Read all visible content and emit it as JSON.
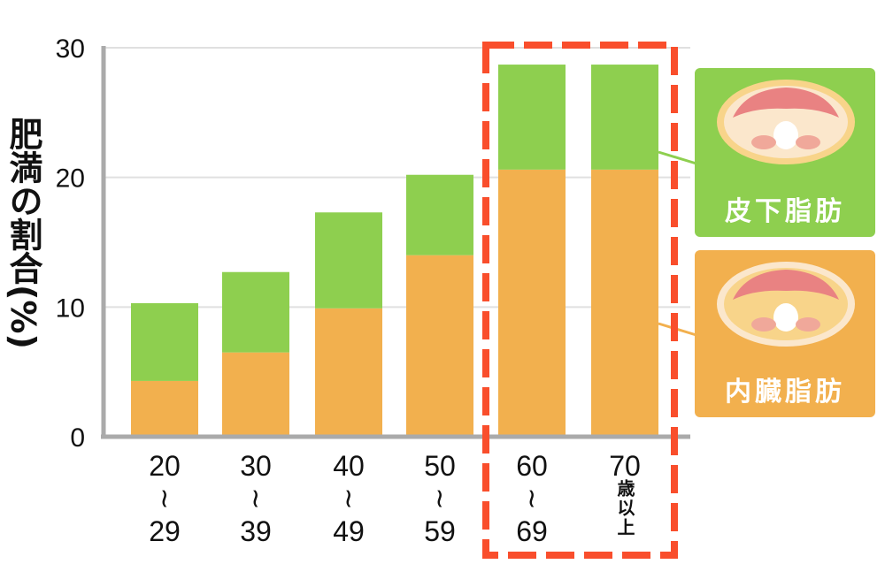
{
  "chart_data": {
    "type": "bar",
    "stacked": true,
    "ylabel": "肥満の割合(%)",
    "ylim": [
      0,
      30
    ],
    "yticks": [
      "0",
      "10",
      "20",
      "30"
    ],
    "grid": true,
    "categories": [
      {
        "top": "20",
        "sep": "~",
        "bottom": "29"
      },
      {
        "top": "30",
        "sep": "~",
        "bottom": "39"
      },
      {
        "top": "40",
        "sep": "~",
        "bottom": "49"
      },
      {
        "top": "50",
        "sep": "~",
        "bottom": "59"
      },
      {
        "top": "60",
        "sep": "~",
        "bottom": "69"
      },
      {
        "top": "70",
        "sep": "",
        "bottom": "歳以上"
      }
    ],
    "series": [
      {
        "name": "内臓脂肪",
        "color": "#f2b04e",
        "values": [
          4.3,
          6.5,
          9.9,
          14.0,
          20.6,
          20.6
        ]
      },
      {
        "name": "皮下脂肪",
        "color": "#8ecf4f",
        "values": [
          6.0,
          6.2,
          7.4,
          6.2,
          8.1,
          8.1
        ]
      }
    ],
    "highlight": {
      "categories": [
        "60~69",
        "70歳以上"
      ],
      "color": "#f94e2c",
      "style": "dashed"
    },
    "legend_placement": "right"
  }
}
